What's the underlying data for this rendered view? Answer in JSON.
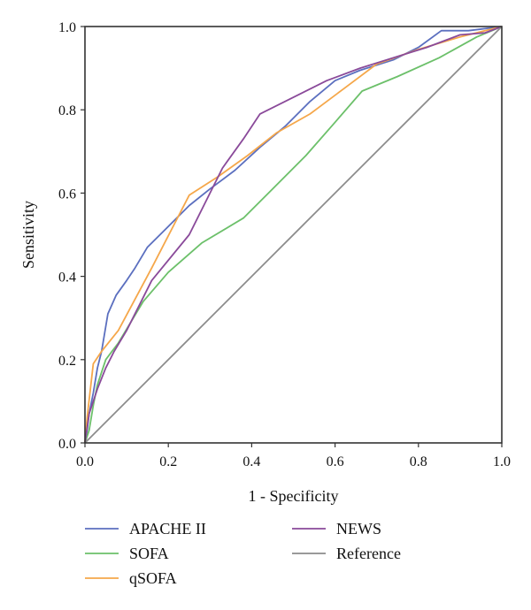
{
  "chart_data": {
    "type": "line",
    "xlabel": "1 - Specificity",
    "ylabel": "Sensitivity",
    "xlim": [
      0,
      1
    ],
    "ylim": [
      0,
      1
    ],
    "xticks": [
      "0.0",
      "0.2",
      "0.4",
      "0.6",
      "0.8",
      "1.0"
    ],
    "yticks": [
      "0.0",
      "0.2",
      "0.4",
      "0.6",
      "0.8",
      "1.0"
    ],
    "grid": false,
    "legend_position": "bottom",
    "series": [
      {
        "name": "APACHE II",
        "color": "#5b6fbf",
        "x": [
          0,
          0.005,
          0.01,
          0.02,
          0.03,
          0.04,
          0.055,
          0.075,
          0.1,
          0.12,
          0.15,
          0.2,
          0.25,
          0.3,
          0.36,
          0.42,
          0.48,
          0.54,
          0.6,
          0.66,
          0.74,
          0.8,
          0.855,
          0.92,
          1.0
        ],
        "y": [
          0,
          0.03,
          0.07,
          0.12,
          0.18,
          0.22,
          0.31,
          0.355,
          0.39,
          0.42,
          0.47,
          0.52,
          0.57,
          0.61,
          0.655,
          0.71,
          0.76,
          0.82,
          0.87,
          0.895,
          0.92,
          0.95,
          0.99,
          0.99,
          1.0
        ]
      },
      {
        "name": "SOFA",
        "color": "#6cc06a",
        "x": [
          0,
          0.01,
          0.02,
          0.03,
          0.05,
          0.08,
          0.14,
          0.2,
          0.28,
          0.38,
          0.45,
          0.53,
          0.6,
          0.665,
          0.75,
          0.85,
          0.94,
          1.0
        ],
        "y": [
          0,
          0.03,
          0.09,
          0.14,
          0.2,
          0.24,
          0.34,
          0.41,
          0.48,
          0.54,
          0.61,
          0.69,
          0.77,
          0.845,
          0.88,
          0.925,
          0.975,
          1.0
        ]
      },
      {
        "name": "qSOFA",
        "color": "#f5a74a",
        "x": [
          0,
          0.005,
          0.02,
          0.04,
          0.08,
          0.16,
          0.25,
          0.32,
          0.39,
          0.46,
          0.54,
          0.62,
          0.7,
          0.8,
          0.9,
          1.0
        ],
        "y": [
          0,
          0.06,
          0.19,
          0.22,
          0.27,
          0.42,
          0.595,
          0.64,
          0.69,
          0.745,
          0.79,
          0.85,
          0.91,
          0.945,
          0.975,
          1.0
        ]
      },
      {
        "name": "NEWS",
        "color": "#8a4a9a",
        "x": [
          0,
          0.01,
          0.03,
          0.05,
          0.07,
          0.1,
          0.16,
          0.25,
          0.3,
          0.33,
          0.38,
          0.42,
          0.5,
          0.58,
          0.66,
          0.74,
          0.82,
          0.9,
          0.96,
          1.0
        ],
        "y": [
          0,
          0.07,
          0.13,
          0.18,
          0.22,
          0.27,
          0.39,
          0.5,
          0.6,
          0.66,
          0.73,
          0.79,
          0.83,
          0.87,
          0.9,
          0.925,
          0.95,
          0.98,
          0.985,
          1.0
        ]
      },
      {
        "name": "Reference",
        "color": "#8c8c8c",
        "x": [
          0,
          1
        ],
        "y": [
          0,
          1
        ]
      }
    ]
  }
}
